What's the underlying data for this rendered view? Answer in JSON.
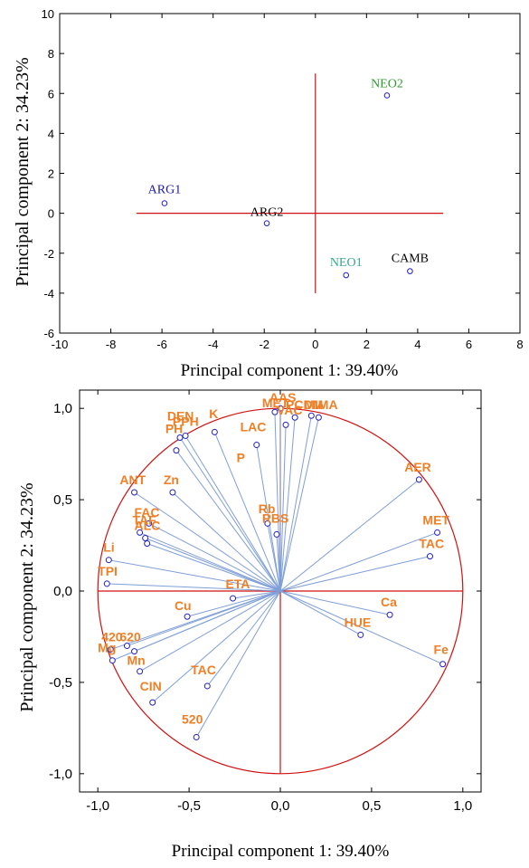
{
  "chart_data": [
    {
      "type": "scatter",
      "title": "",
      "xlabel": "Principal component 1: 39.40%",
      "ylabel": "Principal component 2: 34.23%",
      "xlim": [
        -10,
        8
      ],
      "ylim": [
        -6,
        10
      ],
      "xticks": [
        -10,
        -8,
        -6,
        -4,
        -2,
        0,
        2,
        4,
        6,
        8
      ],
      "yticks": [
        -6,
        -4,
        -2,
        0,
        2,
        4,
        6,
        8,
        10
      ],
      "grid": false,
      "reference_lines": {
        "x": 0,
        "y": 0,
        "color": "#d01010"
      },
      "points": [
        {
          "label": "ARG1",
          "x": -5.9,
          "y": 0.5,
          "color": "#1a1ab0"
        },
        {
          "label": "ARG2",
          "x": -1.9,
          "y": -0.5,
          "color": "#000000"
        },
        {
          "label": "NEO1",
          "x": 1.2,
          "y": -3.1,
          "color": "#38a888"
        },
        {
          "label": "NEO2",
          "x": 2.8,
          "y": 5.9,
          "color": "#2e9a2e"
        },
        {
          "label": "CAMB",
          "x": 3.7,
          "y": -2.9,
          "color": "#000000"
        }
      ]
    },
    {
      "type": "scatter",
      "title": "",
      "xlabel": "Principal component 1: 39.40%",
      "ylabel": "Principal component 2: 34.23%",
      "xlim": [
        -1.1,
        1.1
      ],
      "ylim": [
        -1.1,
        1.1
      ],
      "xticks": [
        "-1,0",
        "-0,5",
        "0,0",
        "0,5",
        "1,0"
      ],
      "yticks": [
        "-1,0",
        "-0,5",
        "0,0",
        "0,5",
        "1,0"
      ],
      "grid": false,
      "unit_circle": true,
      "loadings": [
        {
          "label": "AAS",
          "x": -0.03,
          "y": 0.98
        },
        {
          "label": "MET",
          "x": 0.0,
          "y": 1.0
        },
        {
          "label": "PCDM",
          "x": 0.08,
          "y": 0.95
        },
        {
          "label": "MIMA",
          "x": 0.17,
          "y": 0.96
        },
        {
          "label": "VAC",
          "x": 0.03,
          "y": 0.91
        },
        {
          "label": "LAC",
          "x": 0.21,
          "y": 0.95
        },
        {
          "label": "DEN",
          "x": -0.52,
          "y": 0.85
        },
        {
          "label": "PPH",
          "x": -0.55,
          "y": 0.84
        },
        {
          "label": "K",
          "x": -0.36,
          "y": 0.87
        },
        {
          "label": "PH",
          "x": -0.57,
          "y": 0.77
        },
        {
          "label": "P",
          "x": -0.13,
          "y": 0.8
        },
        {
          "label": "Zn",
          "x": -0.59,
          "y": 0.54
        },
        {
          "label": "ANT",
          "x": -0.8,
          "y": 0.54
        },
        {
          "label": "Rb",
          "x": -0.07,
          "y": 0.37
        },
        {
          "label": "RBS",
          "x": -0.02,
          "y": 0.31
        },
        {
          "label": "AER",
          "x": 0.76,
          "y": 0.61
        },
        {
          "label": "MET",
          "x": 0.86,
          "y": 0.32
        },
        {
          "label": "TAC",
          "x": 0.82,
          "y": 0.19
        },
        {
          "label": "FAC",
          "x": -0.77,
          "y": 0.32
        },
        {
          "label": "TAF",
          "x": -0.74,
          "y": 0.29
        },
        {
          "label": "ALC",
          "x": -0.73,
          "y": 0.26
        },
        {
          "label": "Li",
          "x": -0.72,
          "y": 0.37
        },
        {
          "label": "TPI",
          "x": -0.94,
          "y": 0.17
        },
        {
          "label": "TPI",
          "x": -0.95,
          "y": 0.04
        },
        {
          "label": "ETA",
          "x": -0.26,
          "y": -0.04
        },
        {
          "label": "Cu",
          "x": -0.51,
          "y": -0.14
        },
        {
          "label": "Ca",
          "x": 0.6,
          "y": -0.13
        },
        {
          "label": "HUE",
          "x": 0.44,
          "y": -0.24
        },
        {
          "label": "Fe",
          "x": 0.89,
          "y": -0.4
        },
        {
          "label": "420",
          "x": -0.93,
          "y": -0.32
        },
        {
          "label": "620",
          "x": -0.84,
          "y": -0.3
        },
        {
          "label": "Mg",
          "x": -0.92,
          "y": -0.38
        },
        {
          "label": "Mn",
          "x": -0.8,
          "y": -0.33
        },
        {
          "label": "CIN",
          "x": -0.77,
          "y": -0.44
        },
        {
          "label": "TAC",
          "x": -0.4,
          "y": -0.52
        },
        {
          "label": "520",
          "x": -0.7,
          "y": -0.61
        },
        {
          "label": "520",
          "x": -0.46,
          "y": -0.8
        }
      ],
      "loading_labels": [
        "AAS",
        "MET",
        "PCDM",
        "MIMA",
        "VAC",
        "LAC",
        "DEN",
        "PPH",
        "K",
        "PH",
        "P",
        "Zn",
        "ANT",
        "Rb",
        "RBS",
        "AER",
        "MET",
        "TAC",
        "FAC",
        "TAF",
        "ALC",
        "Li",
        "TPI",
        "ETA",
        "Cu",
        "Ca",
        "HUE",
        "Fe",
        "420",
        "620",
        "Mg",
        "Mn",
        "CIN",
        "TAC",
        "520"
      ]
    }
  ],
  "colors": {
    "axis_red": "#d01010",
    "loading_line": "#7f9fd8",
    "marker": "#2020c8",
    "variable_label": "#f07f25"
  }
}
